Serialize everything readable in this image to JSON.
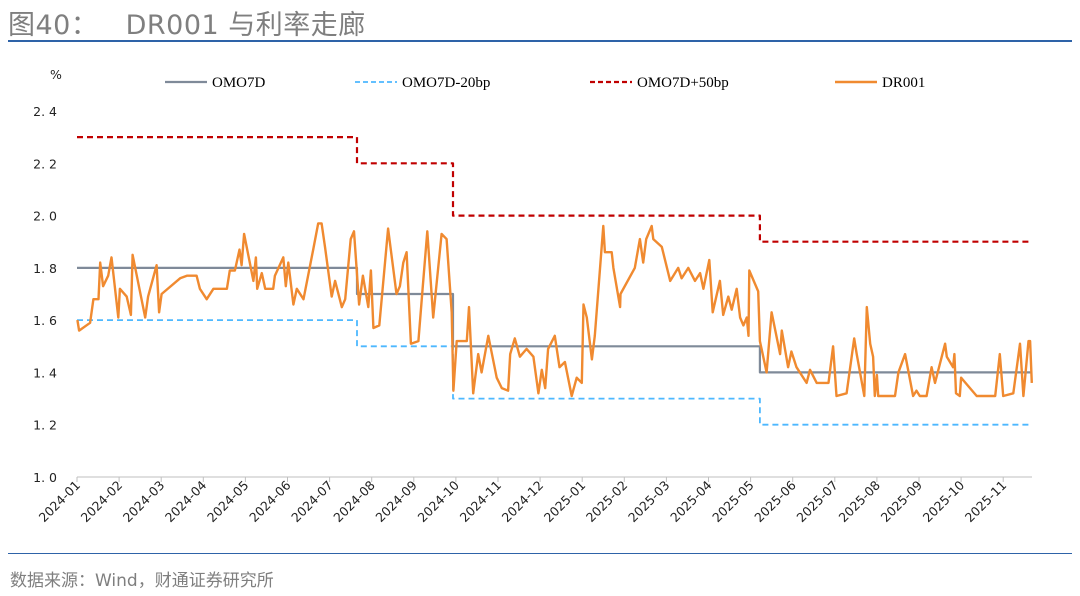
{
  "header": {
    "title": "图40：   DR001 与利率走廊"
  },
  "footer": {
    "source": "数据来源：Wind，财通证券研究所"
  },
  "colors": {
    "omo": "#7f8a99",
    "minus20": "#4db8ff",
    "plus50": "#c00000",
    "dr001": "#f08a30",
    "rule": "#2e63a8"
  },
  "chart_data": {
    "type": "line",
    "title": "DR001 与利率走廊",
    "ylabel": "%",
    "xlabel": "",
    "ylim": [
      1.0,
      2.4
    ],
    "xlim": [
      0,
      22.7
    ],
    "x_unit": "months since 2024-01",
    "yticks": [
      {
        "v": 1.0,
        "label": "1. 0"
      },
      {
        "v": 1.2,
        "label": "1. 2"
      },
      {
        "v": 1.4,
        "label": "1. 4"
      },
      {
        "v": 1.6,
        "label": "1. 6"
      },
      {
        "v": 1.8,
        "label": "1. 8"
      },
      {
        "v": 2.0,
        "label": "2. 0"
      },
      {
        "v": 2.2,
        "label": "2. 2"
      },
      {
        "v": 2.4,
        "label": "2. 4"
      }
    ],
    "xticks": [
      "2024-01",
      "2024-02",
      "2024-03",
      "2024-04",
      "2024-05",
      "2024-06",
      "2024-07",
      "2024-08",
      "2024-09",
      "2024-10",
      "2024-11",
      "2024-12",
      "2025-01",
      "2025-02",
      "2025-03",
      "2025-04",
      "2025-05",
      "2025-06",
      "2025-07",
      "2025-08",
      "2025-09",
      "2025-10",
      "2025-11"
    ],
    "legend_position": "top",
    "series": [
      {
        "name": "OMO7D",
        "style": "solid",
        "points": [
          [
            0,
            1.8
          ],
          [
            6.65,
            1.8
          ],
          [
            6.65,
            1.7
          ],
          [
            8.93,
            1.7
          ],
          [
            8.93,
            1.5
          ],
          [
            16.22,
            1.5
          ],
          [
            16.22,
            1.4
          ],
          [
            22.68,
            1.4
          ]
        ]
      },
      {
        "name": "OMO7D-20bp",
        "style": "dashed",
        "points": [
          [
            0,
            1.6
          ],
          [
            6.65,
            1.6
          ],
          [
            6.65,
            1.5
          ],
          [
            8.93,
            1.5
          ],
          [
            8.93,
            1.3
          ],
          [
            16.22,
            1.3
          ],
          [
            16.22,
            1.2
          ],
          [
            22.68,
            1.2
          ]
        ]
      },
      {
        "name": "OMO7D+50bp",
        "style": "dashed",
        "points": [
          [
            0,
            2.3
          ],
          [
            6.65,
            2.3
          ],
          [
            6.65,
            2.2
          ],
          [
            8.93,
            2.2
          ],
          [
            8.93,
            2.0
          ],
          [
            16.22,
            2.0
          ],
          [
            16.22,
            1.9
          ],
          [
            22.68,
            1.9
          ]
        ]
      },
      {
        "name": "DR001",
        "style": "solid",
        "points": [
          [
            0.01,
            1.6
          ],
          [
            0.05,
            1.56
          ],
          [
            0.31,
            1.59
          ],
          [
            0.39,
            1.68
          ],
          [
            0.51,
            1.68
          ],
          [
            0.55,
            1.82
          ],
          [
            0.62,
            1.73
          ],
          [
            0.74,
            1.77
          ],
          [
            0.82,
            1.84
          ],
          [
            0.98,
            1.61
          ],
          [
            1.02,
            1.72
          ],
          [
            1.18,
            1.69
          ],
          [
            1.28,
            1.62
          ],
          [
            1.32,
            1.85
          ],
          [
            1.62,
            1.61
          ],
          [
            1.69,
            1.69
          ],
          [
            1.89,
            1.81
          ],
          [
            1.95,
            1.63
          ],
          [
            2.01,
            1.7
          ],
          [
            2.45,
            1.76
          ],
          [
            2.61,
            1.77
          ],
          [
            2.84,
            1.77
          ],
          [
            2.92,
            1.72
          ],
          [
            3.08,
            1.68
          ],
          [
            3.24,
            1.72
          ],
          [
            3.56,
            1.72
          ],
          [
            3.63,
            1.79
          ],
          [
            3.75,
            1.79
          ],
          [
            3.86,
            1.87
          ],
          [
            3.91,
            1.81
          ],
          [
            3.97,
            1.93
          ],
          [
            4.19,
            1.75
          ],
          [
            4.25,
            1.84
          ],
          [
            4.28,
            1.72
          ],
          [
            4.39,
            1.78
          ],
          [
            4.47,
            1.72
          ],
          [
            4.66,
            1.72
          ],
          [
            4.7,
            1.77
          ],
          [
            4.9,
            1.84
          ],
          [
            4.96,
            1.73
          ],
          [
            5.02,
            1.82
          ],
          [
            5.14,
            1.66
          ],
          [
            5.22,
            1.72
          ],
          [
            5.38,
            1.68
          ],
          [
            5.61,
            1.87
          ],
          [
            5.73,
            1.97
          ],
          [
            5.81,
            1.97
          ],
          [
            5.89,
            1.88
          ],
          [
            6.05,
            1.69
          ],
          [
            6.13,
            1.75
          ],
          [
            6.29,
            1.65
          ],
          [
            6.37,
            1.68
          ],
          [
            6.5,
            1.91
          ],
          [
            6.58,
            1.94
          ],
          [
            6.7,
            1.66
          ],
          [
            6.79,
            1.77
          ],
          [
            6.92,
            1.65
          ],
          [
            6.98,
            1.79
          ],
          [
            7.04,
            1.57
          ],
          [
            7.18,
            1.58
          ],
          [
            7.39,
            1.95
          ],
          [
            7.59,
            1.7
          ],
          [
            7.67,
            1.73
          ],
          [
            7.75,
            1.82
          ],
          [
            7.83,
            1.86
          ],
          [
            7.93,
            1.51
          ],
          [
            8.11,
            1.52
          ],
          [
            8.21,
            1.72
          ],
          [
            8.32,
            1.94
          ],
          [
            8.46,
            1.61
          ],
          [
            8.66,
            1.93
          ],
          [
            8.78,
            1.91
          ],
          [
            8.9,
            1.63
          ],
          [
            8.94,
            1.33
          ],
          [
            9.02,
            1.52
          ],
          [
            9.26,
            1.52
          ],
          [
            9.31,
            1.65
          ],
          [
            9.41,
            1.32
          ],
          [
            9.53,
            1.47
          ],
          [
            9.61,
            1.4
          ],
          [
            9.77,
            1.54
          ],
          [
            9.97,
            1.38
          ],
          [
            10.09,
            1.34
          ],
          [
            10.24,
            1.33
          ],
          [
            10.29,
            1.47
          ],
          [
            10.4,
            1.53
          ],
          [
            10.52,
            1.46
          ],
          [
            10.68,
            1.49
          ],
          [
            10.84,
            1.46
          ],
          [
            10.96,
            1.32
          ],
          [
            11.04,
            1.41
          ],
          [
            11.12,
            1.34
          ],
          [
            11.19,
            1.49
          ],
          [
            11.35,
            1.54
          ],
          [
            11.46,
            1.42
          ],
          [
            11.59,
            1.44
          ],
          [
            11.75,
            1.31
          ],
          [
            11.87,
            1.38
          ],
          [
            11.99,
            1.36
          ],
          [
            12.03,
            1.66
          ],
          [
            12.11,
            1.61
          ],
          [
            12.23,
            1.45
          ],
          [
            12.3,
            1.54
          ],
          [
            12.5,
            1.96
          ],
          [
            12.54,
            1.86
          ],
          [
            12.7,
            1.86
          ],
          [
            12.74,
            1.8
          ],
          [
            12.9,
            1.65
          ],
          [
            12.91,
            1.7
          ],
          [
            13.25,
            1.8
          ],
          [
            13.37,
            1.91
          ],
          [
            13.45,
            1.82
          ],
          [
            13.52,
            1.91
          ],
          [
            13.65,
            1.96
          ],
          [
            13.69,
            1.91
          ],
          [
            13.89,
            1.88
          ],
          [
            14.09,
            1.75
          ],
          [
            14.28,
            1.8
          ],
          [
            14.36,
            1.76
          ],
          [
            14.52,
            1.8
          ],
          [
            14.68,
            1.75
          ],
          [
            14.8,
            1.78
          ],
          [
            14.88,
            1.72
          ],
          [
            15.02,
            1.83
          ],
          [
            15.1,
            1.63
          ],
          [
            15.27,
            1.75
          ],
          [
            15.35,
            1.62
          ],
          [
            15.47,
            1.69
          ],
          [
            15.55,
            1.64
          ],
          [
            15.67,
            1.72
          ],
          [
            15.75,
            1.61
          ],
          [
            15.83,
            1.58
          ],
          [
            15.91,
            1.61
          ],
          [
            15.95,
            1.54
          ],
          [
            15.97,
            1.79
          ],
          [
            16.18,
            1.71
          ],
          [
            16.22,
            1.52
          ],
          [
            16.38,
            1.4
          ],
          [
            16.5,
            1.63
          ],
          [
            16.7,
            1.47
          ],
          [
            16.74,
            1.56
          ],
          [
            16.89,
            1.42
          ],
          [
            16.97,
            1.48
          ],
          [
            17.09,
            1.42
          ],
          [
            17.33,
            1.36
          ],
          [
            17.41,
            1.41
          ],
          [
            17.57,
            1.36
          ],
          [
            17.85,
            1.36
          ],
          [
            17.96,
            1.5
          ],
          [
            18.04,
            1.31
          ],
          [
            18.28,
            1.32
          ],
          [
            18.46,
            1.53
          ],
          [
            18.52,
            1.47
          ],
          [
            18.7,
            1.31
          ],
          [
            18.76,
            1.65
          ],
          [
            18.84,
            1.51
          ],
          [
            18.91,
            1.46
          ],
          [
            18.95,
            1.31
          ],
          [
            19.0,
            1.39
          ],
          [
            19.03,
            1.31
          ],
          [
            19.27,
            1.31
          ],
          [
            19.43,
            1.31
          ],
          [
            19.51,
            1.4
          ],
          [
            19.67,
            1.47
          ],
          [
            19.86,
            1.31
          ],
          [
            19.94,
            1.33
          ],
          [
            20.02,
            1.31
          ],
          [
            20.18,
            1.31
          ],
          [
            20.3,
            1.42
          ],
          [
            20.38,
            1.36
          ],
          [
            20.62,
            1.51
          ],
          [
            20.66,
            1.46
          ],
          [
            20.81,
            1.42
          ],
          [
            20.84,
            1.47
          ],
          [
            20.88,
            1.32
          ],
          [
            20.97,
            1.31
          ],
          [
            21.0,
            1.38
          ],
          [
            21.37,
            1.31
          ],
          [
            21.53,
            1.31
          ],
          [
            21.81,
            1.31
          ],
          [
            21.92,
            1.47
          ],
          [
            22.0,
            1.31
          ],
          [
            22.24,
            1.32
          ],
          [
            22.4,
            1.51
          ],
          [
            22.48,
            1.31
          ],
          [
            22.6,
            1.52
          ],
          [
            22.64,
            1.52
          ],
          [
            22.68,
            1.36
          ]
        ]
      }
    ]
  }
}
